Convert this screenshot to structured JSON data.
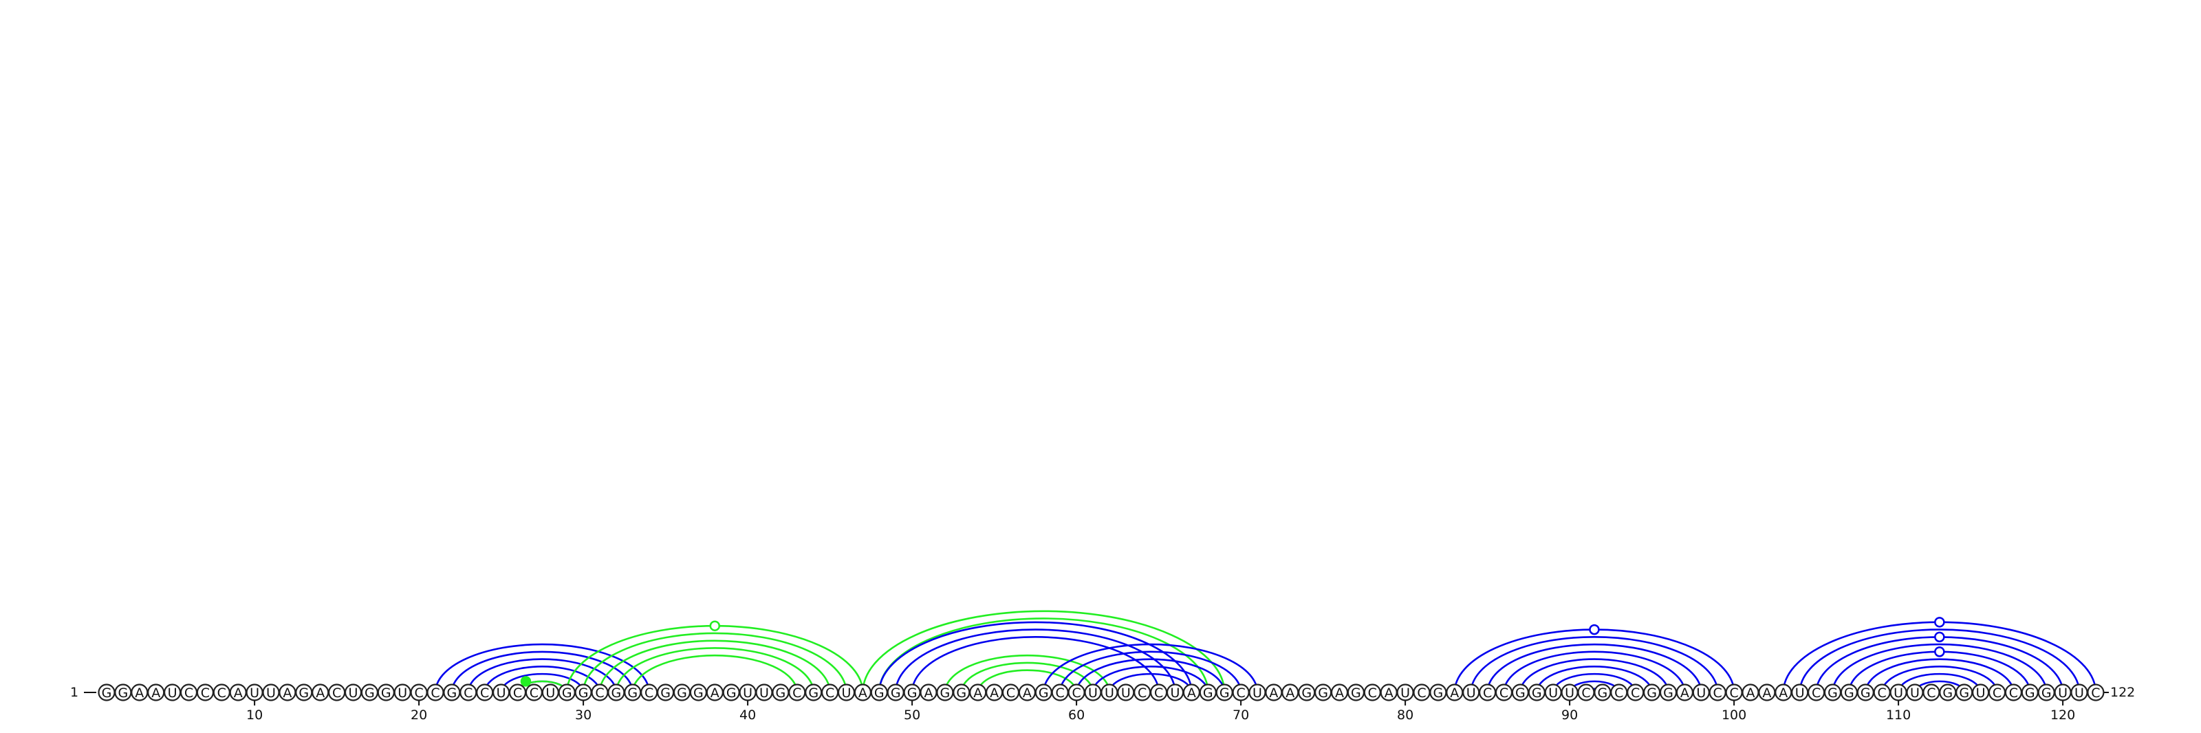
{
  "sequence": "GGAAUCCCAUUAGACUGGUCCGCCUCCUGGCGGCGGGAGUUGCGCUAGGGAGGAACAGCCUUUCCUAGGCUAAGGAGCAUCGAUCCGGUUCGCCGGAUCCAAAUCGGGCUUCGGUCCGGUUC",
  "start_label": "1",
  "end_label": "122",
  "ticks": [
    10,
    20,
    30,
    40,
    50,
    60,
    70,
    80,
    90,
    100,
    110,
    120
  ],
  "colors": {
    "blue": "#0000ee",
    "green": "#22ee22",
    "outline": "#222222"
  },
  "chart_data": {
    "type": "arc-diagram",
    "length": 122,
    "arc_groups": [
      {
        "color": "blue",
        "pairs": [
          [
            21,
            34
          ],
          [
            22,
            33
          ],
          [
            23,
            32
          ],
          [
            24,
            31
          ],
          [
            25,
            30
          ],
          [
            26,
            29
          ]
        ]
      },
      {
        "color": "green",
        "pairs": [
          [
            26,
            29
          ]
        ],
        "markers": [
          {
            "pos": 26.5,
            "filled": true
          }
        ]
      },
      {
        "color": "green",
        "pairs": [
          [
            29,
            47
          ],
          [
            30,
            46
          ],
          [
            31,
            45
          ],
          [
            32,
            44
          ],
          [
            33,
            43
          ]
        ],
        "markers": [
          {
            "pos": 38,
            "filled": false
          }
        ]
      },
      {
        "color": "green",
        "pairs": [
          [
            47,
            69
          ],
          [
            48,
            68
          ]
        ]
      },
      {
        "color": "blue",
        "pairs": [
          [
            48,
            67
          ],
          [
            49,
            66
          ],
          [
            50,
            65
          ]
        ]
      },
      {
        "color": "green",
        "pairs": [
          [
            52,
            62
          ],
          [
            53,
            61
          ],
          [
            54,
            60
          ]
        ]
      },
      {
        "color": "blue",
        "pairs": [
          [
            58,
            71
          ],
          [
            59,
            70
          ],
          [
            60,
            69
          ],
          [
            61,
            68
          ],
          [
            62,
            67
          ]
        ]
      },
      {
        "color": "blue",
        "pairs": [
          [
            83,
            100
          ],
          [
            84,
            99
          ],
          [
            85,
            98
          ],
          [
            86,
            97
          ],
          [
            87,
            96
          ],
          [
            88,
            95
          ],
          [
            89,
            94
          ],
          [
            90,
            93
          ],
          [
            91,
            92
          ]
        ],
        "markers": [
          {
            "pos": 91.5,
            "filled": false
          }
        ]
      },
      {
        "color": "blue",
        "pairs": [
          [
            103,
            122
          ],
          [
            104,
            121
          ],
          [
            105,
            120
          ],
          [
            106,
            119
          ],
          [
            107,
            118
          ],
          [
            108,
            117
          ],
          [
            109,
            116
          ],
          [
            110,
            115
          ],
          [
            111,
            114
          ]
        ],
        "markers": [
          {
            "pos": 112.5,
            "filled": false
          },
          {
            "pos": 112.5,
            "filled": false
          },
          {
            "pos": 112.5,
            "filled": false
          }
        ]
      }
    ]
  }
}
